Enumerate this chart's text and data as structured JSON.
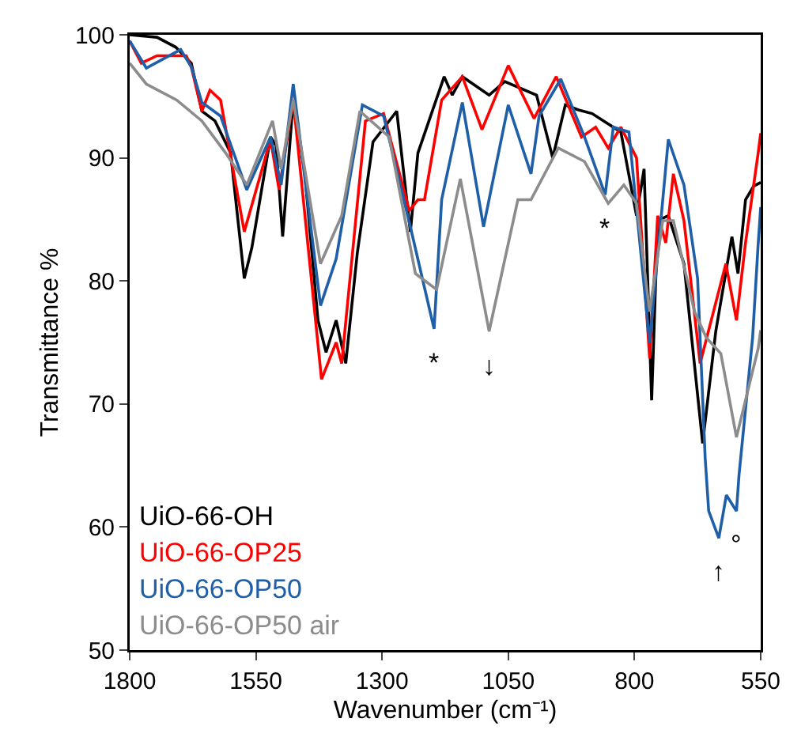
{
  "chart_data": {
    "type": "line",
    "xlabel": "Wavenumber (cm⁻¹)",
    "ylabel": "Transmittance %",
    "xlim": [
      1800,
      550
    ],
    "xticks": [
      1800,
      1550,
      1300,
      1050,
      800,
      550
    ],
    "ylim": [
      50,
      100
    ],
    "yticks": [
      50,
      60,
      70,
      80,
      90,
      100
    ],
    "grid": false,
    "legend": "bottom left",
    "marker": "none",
    "line_style": "solid",
    "series": [
      {
        "name": "UiO-66-OH",
        "color": "#000000",
        "x": [
          1800,
          1746,
          1709,
          1678,
          1657,
          1631,
          1600,
          1573,
          1558,
          1521,
          1510,
          1497,
          1476,
          1453,
          1427,
          1411,
          1391,
          1372,
          1349,
          1318,
          1271,
          1244,
          1229,
          1177,
          1161,
          1141,
          1088,
          1057,
          994,
          962,
          937,
          911,
          884,
          827,
          796,
          781,
          766,
          754,
          733,
          702,
          665,
          639,
          607,
          595,
          580,
          564,
          550
        ],
        "values": [
          100,
          99.8,
          99,
          97.7,
          93.8,
          93,
          90.4,
          80.2,
          82.7,
          91.7,
          91,
          83.6,
          94.7,
          88.7,
          76.8,
          74.2,
          76.8,
          73.3,
          82.3,
          91.3,
          93.8,
          84,
          90.4,
          96.6,
          95.1,
          96.6,
          95.1,
          96.2,
          95.1,
          90,
          94.3,
          93.9,
          93.6,
          92.1,
          85.3,
          89.1,
          70.3,
          84.9,
          85.3,
          81.4,
          66.8,
          75.9,
          83.6,
          80.6,
          86.6,
          87.7,
          88
        ]
      },
      {
        "name": "UiO-66-OP25",
        "color": "#ff0000",
        "x": [
          1800,
          1777,
          1746,
          1688,
          1678,
          1657,
          1641,
          1620,
          1573,
          1521,
          1504,
          1476,
          1420,
          1391,
          1380,
          1333,
          1297,
          1246,
          1229,
          1216,
          1182,
          1141,
          1102,
          1050,
          999,
          955,
          905,
          877,
          852,
          827,
          796,
          770,
          754,
          738,
          723,
          702,
          670,
          619,
          598,
          580,
          555,
          550
        ],
        "values": [
          99.5,
          97.7,
          98.3,
          98.3,
          97.4,
          93.8,
          95.5,
          94.7,
          84,
          91.5,
          87.4,
          94.7,
          72,
          75,
          73.3,
          93,
          93.6,
          85.7,
          86.6,
          86.6,
          94.7,
          96.6,
          92.3,
          97.5,
          93.2,
          96.6,
          91.7,
          92.5,
          90.8,
          92.5,
          90,
          73.7,
          85.3,
          83.1,
          88.7,
          84.9,
          73.3,
          81.4,
          76.8,
          83.1,
          90.4,
          92
        ]
      },
      {
        "name": "UiO-66-OP50",
        "color": "#1f5fa8",
        "x": [
          1800,
          1767,
          1699,
          1678,
          1657,
          1620,
          1568,
          1521,
          1500,
          1476,
          1422,
          1391,
          1339,
          1297,
          1244,
          1197,
          1182,
          1141,
          1099,
          1050,
          1005,
          989,
          946,
          899,
          858,
          842,
          811,
          770,
          733,
          702,
          675,
          660,
          653,
          633,
          618,
          598,
          593,
          566,
          555,
          550
        ],
        "values": [
          99.5,
          97.3,
          98.8,
          97.4,
          94.5,
          93.4,
          87.4,
          91.7,
          87.8,
          96,
          78,
          81.8,
          94.3,
          93.4,
          84.4,
          76.1,
          86.6,
          94.5,
          84.4,
          94.3,
          88.7,
          93.4,
          96.4,
          91.7,
          87,
          92.5,
          92.1,
          75,
          91.5,
          87.8,
          80.2,
          65.6,
          61.3,
          59.1,
          62.6,
          61.3,
          64.2,
          75.4,
          83,
          86
        ]
      },
      {
        "name": "UiO-66-OP50 air",
        "color": "#8c8c8c",
        "x": [
          1800,
          1767,
          1707,
          1657,
          1610,
          1568,
          1517,
          1500,
          1476,
          1422,
          1380,
          1344,
          1286,
          1234,
          1192,
          1145,
          1088,
          1031,
          1005,
          951,
          899,
          852,
          821,
          796,
          770,
          744,
          723,
          681,
          658,
          629,
          598,
          555,
          550
        ],
        "values": [
          97.7,
          96,
          94.7,
          93,
          90.4,
          87.8,
          93,
          89.1,
          94.7,
          81.4,
          85.3,
          93.8,
          91.7,
          80.6,
          79.3,
          88.3,
          75.9,
          86.6,
          86.6,
          90.8,
          89.7,
          86.3,
          87.8,
          86.3,
          77.5,
          84.9,
          84.9,
          77.5,
          75.4,
          74.1,
          67.3,
          74.5,
          76
        ]
      }
    ],
    "annotations": [
      {
        "text": "*",
        "x": 1197,
        "y": 76.1
      },
      {
        "text": "↓",
        "x": 1088,
        "y": 75.9
      },
      {
        "text": "*",
        "x": 858,
        "y": 87
      },
      {
        "text": "°",
        "x": 598,
        "y": 61.3
      },
      {
        "text": "↑",
        "x": 633,
        "y": 59.1
      }
    ]
  }
}
